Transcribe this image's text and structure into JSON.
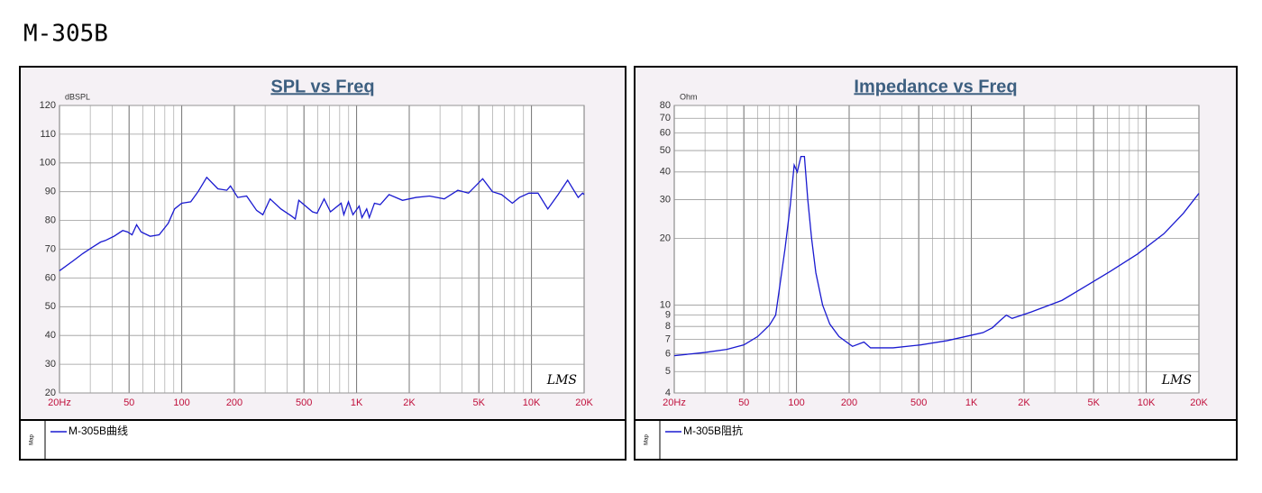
{
  "title": "M-305B",
  "chart_data": [
    {
      "type": "line",
      "title": "SPL vs Freq",
      "y_unit": "dBSPL",
      "watermark": "LMS",
      "legend_side_label": "Map",
      "xscale": "log",
      "yscale": "linear",
      "grid": true,
      "xlim": [
        20,
        20000
      ],
      "ylim": [
        20,
        120
      ],
      "xticks": [
        {
          "value": 20,
          "label": "20Hz"
        },
        50,
        100,
        200,
        500,
        {
          "value": 1000,
          "label": "1K"
        },
        {
          "value": 2000,
          "label": "2K"
        },
        {
          "value": 5000,
          "label": "5K"
        },
        {
          "value": 10000,
          "label": "10K"
        },
        {
          "value": 20000,
          "label": "20K"
        }
      ],
      "yticks": [
        20,
        30,
        40,
        50,
        60,
        70,
        80,
        90,
        100,
        110,
        120
      ],
      "xgrid": [
        20,
        30,
        40,
        50,
        60,
        70,
        80,
        90,
        100,
        200,
        300,
        400,
        500,
        600,
        700,
        800,
        900,
        1000,
        2000,
        3000,
        4000,
        5000,
        6000,
        7000,
        8000,
        9000,
        10000,
        20000
      ],
      "x": [
        20,
        24,
        27.2,
        30.5,
        34.4,
        36.5,
        41,
        46,
        49,
        52,
        55.2,
        58.6,
        66,
        74.3,
        83.7,
        91,
        100,
        112.6,
        124,
        139,
        161,
        181,
        190,
        209,
        235,
        268,
        291,
        320,
        369,
        425,
        446,
        467,
        559,
        594,
        652,
        709,
        816,
        845,
        898,
        953,
        1034,
        1073,
        1142,
        1182,
        1265,
        1365,
        1533,
        1830,
        2187,
        2612,
        3172,
        3794,
        4362,
        5260,
        5983,
        6744,
        7774,
        8534,
        9670,
        10900,
        12400,
        14200,
        16100,
        18500,
        19600,
        20000
      ],
      "series": [
        {
          "name": "M-305B曲线",
          "color": "#1a1ad0",
          "values": [
            62.5,
            66,
            68.5,
            70.5,
            72.5,
            73,
            74.5,
            76.5,
            76,
            75,
            78.5,
            76,
            74.5,
            75,
            79,
            84,
            86,
            86.5,
            90,
            95,
            91,
            90.5,
            92,
            88,
            88.5,
            83.5,
            82,
            87.5,
            84,
            81.5,
            80.5,
            87,
            83,
            82.5,
            87.5,
            83,
            86,
            82,
            86.5,
            82,
            85,
            81,
            84,
            81,
            86,
            85.5,
            89,
            87,
            88,
            88.5,
            87.5,
            90.5,
            89.5,
            94.5,
            90,
            89,
            86,
            88,
            89.5,
            89.5,
            84,
            89,
            94,
            88,
            89.5,
            89
          ]
        }
      ]
    },
    {
      "type": "line",
      "title": "Impedance vs Freq",
      "y_unit": "Ohm",
      "watermark": "LMS",
      "legend_side_label": "Map",
      "xscale": "log",
      "yscale": "log",
      "grid": true,
      "xlim": [
        20,
        20000
      ],
      "ylim": [
        4,
        80
      ],
      "xticks": [
        {
          "value": 20,
          "label": "20Hz"
        },
        50,
        100,
        200,
        500,
        {
          "value": 1000,
          "label": "1K"
        },
        {
          "value": 2000,
          "label": "2K"
        },
        {
          "value": 5000,
          "label": "5K"
        },
        {
          "value": 10000,
          "label": "10K"
        },
        {
          "value": 20000,
          "label": "20K"
        }
      ],
      "yticks": [
        4,
        5,
        6,
        7,
        8,
        9,
        10,
        20,
        30,
        40,
        50,
        60,
        70,
        80
      ],
      "xgrid": [
        20,
        30,
        40,
        50,
        60,
        70,
        80,
        90,
        100,
        200,
        300,
        400,
        500,
        600,
        700,
        800,
        900,
        1000,
        2000,
        3000,
        4000,
        5000,
        6000,
        7000,
        8000,
        9000,
        10000,
        20000
      ],
      "x": [
        20,
        30,
        40,
        50,
        60,
        70,
        76,
        80,
        86,
        92,
        97,
        101,
        106,
        111,
        116,
        122,
        129,
        141,
        155,
        175,
        209,
        243,
        265,
        357,
        512,
        728,
        1000,
        1166,
        1322,
        1458,
        1585,
        1710,
        2200,
        3300,
        4370,
        6230,
        8900,
        12600,
        16300,
        20000
      ],
      "series": [
        {
          "name": "M-305B阻抗",
          "color": "#1a1ad0",
          "values": [
            5.9,
            6.1,
            6.3,
            6.6,
            7.2,
            8.1,
            9,
            12,
            18,
            28,
            43,
            40,
            47,
            47,
            30,
            20,
            14,
            10,
            8.2,
            7.2,
            6.5,
            6.8,
            6.4,
            6.4,
            6.6,
            6.9,
            7.3,
            7.5,
            7.9,
            8.5,
            9.0,
            8.7,
            9.3,
            10.5,
            12,
            14.2,
            17,
            21,
            26,
            32
          ]
        }
      ]
    }
  ]
}
